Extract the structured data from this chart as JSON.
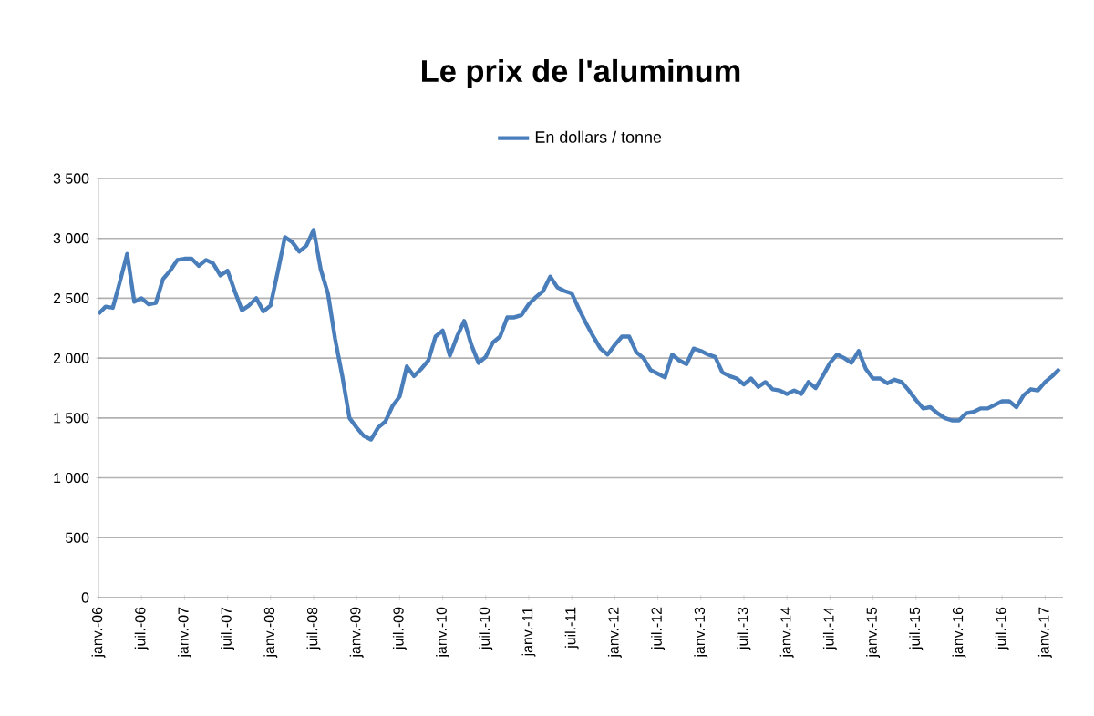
{
  "chart_data": {
    "type": "line",
    "title": "Le prix de l'aluminum",
    "categories": [
      "janv.-06",
      null,
      null,
      null,
      null,
      null,
      "juil.-06",
      null,
      null,
      null,
      null,
      null,
      "janv.-07",
      null,
      null,
      null,
      null,
      null,
      "juil.-07",
      null,
      null,
      null,
      null,
      null,
      "janv.-08",
      null,
      null,
      null,
      null,
      null,
      "juil.-08",
      null,
      null,
      null,
      null,
      null,
      "janv.-09",
      null,
      null,
      null,
      null,
      null,
      "juil.-09",
      null,
      null,
      null,
      null,
      null,
      "janv.-10",
      null,
      null,
      null,
      null,
      null,
      "juil.-10",
      null,
      null,
      null,
      null,
      null,
      "janv.-11",
      null,
      null,
      null,
      null,
      null,
      "juil.-11",
      null,
      null,
      null,
      null,
      null,
      "janv.-12",
      null,
      null,
      null,
      null,
      null,
      "juil.-12",
      null,
      null,
      null,
      null,
      null,
      "janv.-13",
      null,
      null,
      null,
      null,
      null,
      "juil.-13",
      null,
      null,
      null,
      null,
      null,
      "janv.-14",
      null,
      null,
      null,
      null,
      null,
      "juil.-14",
      null,
      null,
      null,
      null,
      null,
      "janv.-15",
      null,
      null,
      null,
      null,
      null,
      "juil.-15",
      null,
      null,
      null,
      null,
      null,
      "janv.-16",
      null,
      null,
      null,
      null,
      null,
      "juil.-16",
      null,
      null,
      null,
      null,
      null,
      "janv.-17",
      null,
      null
    ],
    "series": [
      {
        "name": "En dollars / tonne",
        "color": "#4a7ebb",
        "values": [
          2370,
          2430,
          2420,
          2640,
          2870,
          2470,
          2500,
          2450,
          2460,
          2660,
          2730,
          2820,
          2830,
          2830,
          2770,
          2820,
          2790,
          2690,
          2730,
          2560,
          2400,
          2440,
          2500,
          2390,
          2440,
          2720,
          3010,
          2970,
          2890,
          2940,
          3070,
          2740,
          2540,
          2160,
          1850,
          1500,
          1420,
          1350,
          1320,
          1420,
          1470,
          1600,
          1680,
          1930,
          1850,
          1910,
          1980,
          2180,
          2230,
          2020,
          2180,
          2310,
          2110,
          1960,
          2010,
          2130,
          2180,
          2340,
          2340,
          2360,
          2450,
          2510,
          2560,
          2680,
          2590,
          2560,
          2540,
          2410,
          2290,
          2180,
          2080,
          2030,
          2110,
          2180,
          2180,
          2050,
          2000,
          1900,
          1870,
          1840,
          2030,
          1980,
          1950,
          2080,
          2060,
          2030,
          2010,
          1880,
          1850,
          1830,
          1780,
          1830,
          1760,
          1800,
          1740,
          1730,
          1700,
          1730,
          1700,
          1800,
          1750,
          1850,
          1960,
          2030,
          2000,
          1960,
          2060,
          1910,
          1830,
          1830,
          1790,
          1820,
          1800,
          1730,
          1650,
          1580,
          1590,
          1540,
          1500,
          1480,
          1480,
          1540,
          1550,
          1580,
          1580,
          1610,
          1640,
          1640,
          1590,
          1690,
          1740,
          1730,
          1800,
          1850,
          1910
        ]
      }
    ],
    "ylim": [
      0,
      3500
    ],
    "yticks": [
      0,
      500,
      {
        "value": 1000,
        "label": "1 000"
      },
      {
        "value": 1500,
        "label": "1 500"
      },
      {
        "value": 2000,
        "label": "2 000"
      },
      {
        "value": 2500,
        "label": "2 500"
      },
      {
        "value": 3000,
        "label": "3 000"
      },
      {
        "value": 3500,
        "label": "3 500"
      }
    ],
    "grid": "y",
    "legend": "top",
    "marker": "none",
    "line_style": "solid"
  }
}
